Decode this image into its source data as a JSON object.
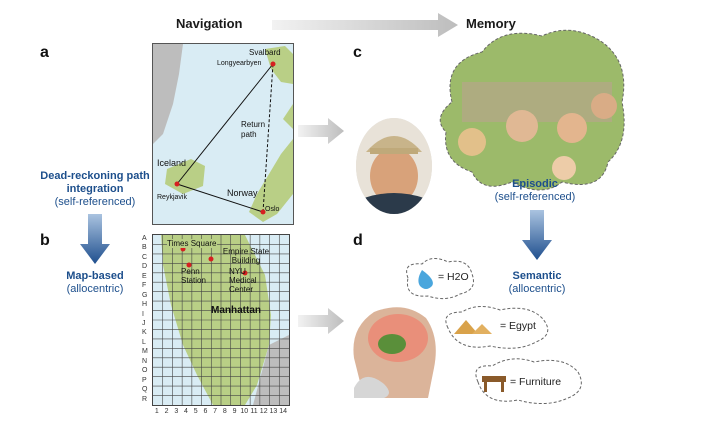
{
  "headers": {
    "navigation": "Navigation",
    "memory": "Memory"
  },
  "panels": {
    "a": "a",
    "b": "b",
    "c": "c",
    "d": "d"
  },
  "left": {
    "dead_reckoning": "Dead-reckoning path integration",
    "dead_reckoning_sub": "(self-referenced)",
    "map_based": "Map-based",
    "map_based_sub": "(allocentric)"
  },
  "right": {
    "episodic": "Episodic",
    "episodic_sub": "(self-referenced)",
    "semantic": "Semantic",
    "semantic_sub": "(allocentric)"
  },
  "map_a": {
    "svalbard": "Svalbard",
    "longyearbyen": "Longyearbyen",
    "return_path": "Return path",
    "iceland": "Iceland",
    "reykjavik": "Reykjavik",
    "norway": "Norway",
    "oslo": "Oslo"
  },
  "map_b": {
    "rows": [
      "A",
      "B",
      "C",
      "D",
      "E",
      "F",
      "G",
      "H",
      "I",
      "J",
      "K",
      "L",
      "M",
      "N",
      "O",
      "P",
      "Q",
      "R"
    ],
    "cols": [
      "1",
      "2",
      "3",
      "4",
      "5",
      "6",
      "7",
      "8",
      "9",
      "10",
      "11",
      "12",
      "13",
      "14"
    ],
    "times_square": "Times Square",
    "empire_state": "Empire State Building",
    "penn_station": "Penn Station",
    "nyu": "NYU Medical Center",
    "manhattan": "Manhattan"
  },
  "semantic_clouds": {
    "water": "= H2O",
    "egypt": "= Egypt",
    "furniture": "= Furniture"
  },
  "colors": {
    "arrow_gray": "#c9c9c9",
    "arrow_blue": "#2c5f9e",
    "sea": "#d9ecf4",
    "land": "#b9cf86",
    "dot": "#d62020"
  }
}
